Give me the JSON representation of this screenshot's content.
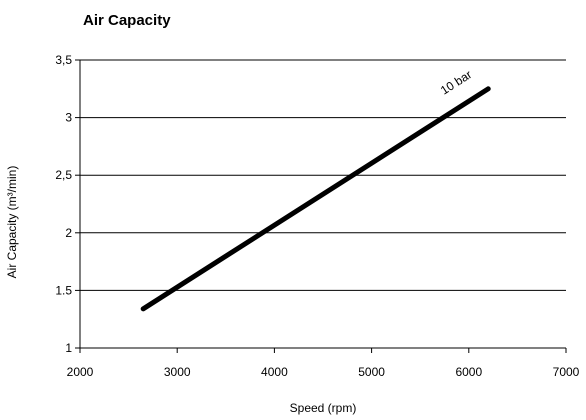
{
  "chart_data": {
    "type": "line",
    "title": "Air Capacity",
    "xlabel": "Speed (rpm)",
    "ylabel": "Air Capacity (m³/min)",
    "xlim": [
      2000,
      7000
    ],
    "ylim": [
      1,
      3.5
    ],
    "xticks": [
      2000,
      3000,
      4000,
      5000,
      6000,
      7000
    ],
    "xtick_labels": [
      "2000",
      "3000",
      "4000",
      "5000",
      "6000",
      "7000"
    ],
    "yticks": [
      1,
      1.5,
      2,
      2.5,
      3,
      3.5
    ],
    "ytick_labels": [
      "1",
      "1.5",
      "2",
      "2,5",
      "3",
      "3,5"
    ],
    "grid": "horizontal",
    "legend": "none",
    "series": [
      {
        "name": "10 bar",
        "x": [
          2650,
          6200
        ],
        "y": [
          1.34,
          3.25
        ],
        "color": "#000000"
      }
    ]
  }
}
